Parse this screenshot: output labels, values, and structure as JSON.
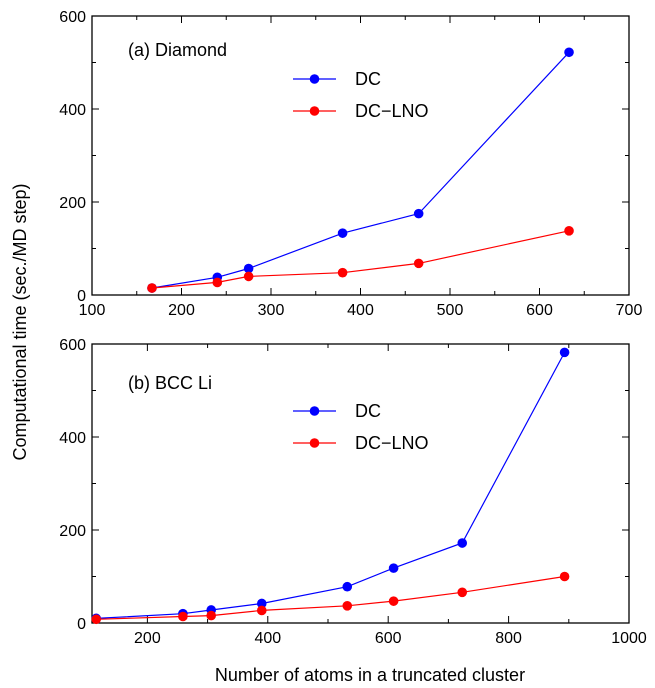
{
  "ylabel": "Computational time (sec./MD step)",
  "xlabel": "Number of atoms in a truncated cluster",
  "colors": {
    "DC": "#0000ff",
    "DC-LNO": "#ff0000"
  },
  "chart_data": [
    {
      "type": "line",
      "title": "(a) Diamond",
      "xlim": [
        100,
        700
      ],
      "ylim": [
        0,
        600
      ],
      "xticks": [
        100,
        200,
        300,
        400,
        500,
        600,
        700
      ],
      "yticks": [
        0,
        200,
        400,
        600
      ],
      "legend_position": "upper-center",
      "series": [
        {
          "name": "DC",
          "x": [
            167,
            240,
            275,
            380,
            465,
            633
          ],
          "y": [
            15,
            38,
            57,
            133,
            175,
            522
          ]
        },
        {
          "name": "DC−LNO",
          "x": [
            167,
            240,
            275,
            380,
            465,
            633
          ],
          "y": [
            15,
            27,
            40,
            48,
            68,
            138
          ]
        }
      ]
    },
    {
      "type": "line",
      "title": "(b) BCC Li",
      "xlim": [
        108,
        1000
      ],
      "ylim": [
        0,
        600
      ],
      "xticks": [
        200,
        400,
        600,
        800,
        1000
      ],
      "yticks": [
        0,
        200,
        400,
        600
      ],
      "legend_position": "upper-center",
      "series": [
        {
          "name": "DC",
          "x": [
            115,
            259,
            306,
            390,
            532,
            609,
            723,
            893
          ],
          "y": [
            10,
            20,
            28,
            42,
            78,
            118,
            172,
            582
          ]
        },
        {
          "name": "DC−LNO",
          "x": [
            115,
            259,
            306,
            390,
            532,
            609,
            723,
            893
          ],
          "y": [
            8,
            14,
            16,
            27,
            37,
            47,
            66,
            100
          ]
        }
      ]
    }
  ]
}
